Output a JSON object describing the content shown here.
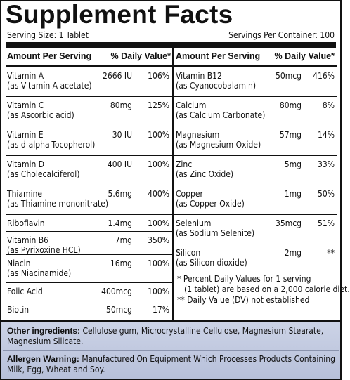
{
  "title": "Supplement Facts",
  "serving_size": "Serving Size: 1 Tablet",
  "servings_per_container": "Servings Per Container: 100",
  "headers": {
    "amount_per_serving": "Amount Per Serving",
    "daily_value": "% Daily Value*"
  },
  "left_rows": [
    {
      "name": "Vitamin A",
      "sub": "(as Vitamin A acetate)",
      "amount": "2666 IU",
      "dv": "106%"
    },
    {
      "name": "Vitamin C",
      "sub": "(as Ascorbic acid)",
      "amount": "80mg",
      "dv": "125%"
    },
    {
      "name": "Vitamin E",
      "sub": "(as d-alpha-Tocopherol)",
      "amount": "30 IU",
      "dv": "100%"
    },
    {
      "name": "Vitamin D",
      "sub": "(as Cholecalciferol)",
      "amount": "400 IU",
      "dv": "100%"
    },
    {
      "name": "Thiamine",
      "sub": "(as Thiamine mononitrate)",
      "amount": "5.6mg",
      "dv": "400%"
    },
    {
      "name": "Riboflavin",
      "sub": "",
      "amount": "1.4mg",
      "dv": "100%"
    },
    {
      "name": "Vitamin B6",
      "sub": "(as Pyrixoxine HCL)",
      "amount": "7mg",
      "dv": "350%"
    },
    {
      "name": "Niacin",
      "sub": "(as Niacinamide)",
      "amount": "16mg",
      "dv": "100%"
    },
    {
      "name": "Folic Acid",
      "sub": "",
      "amount": "400mcg",
      "dv": "100%"
    },
    {
      "name": "Biotin",
      "sub": "",
      "amount": "50mcg",
      "dv": "17%"
    }
  ],
  "right_rows": [
    {
      "name": "Vitamin B12",
      "sub": "(as Cyanocobalamin)",
      "amount": "50mcg",
      "dv": "416%"
    },
    {
      "name": "Calcium",
      "sub": "(as Calcium Carbonate)",
      "amount": "80mg",
      "dv": "8%"
    },
    {
      "name": "Magnesium",
      "sub": "(as Magnesium Oxide)",
      "amount": "57mg",
      "dv": "14%"
    },
    {
      "name": "Zinc",
      "sub": "(as Zinc Oxide)",
      "amount": "5mg",
      "dv": "33%"
    },
    {
      "name": "Copper",
      "sub": "(as Copper Oxide)",
      "amount": "1mg",
      "dv": "50%"
    },
    {
      "name": "Selenium",
      "sub": "(as Sodium Selenite)",
      "amount": "35mcg",
      "dv": "51%"
    },
    {
      "name": "Silicon",
      "sub": "(as Silicon dioxide)",
      "amount": "2mg",
      "dv": "**"
    }
  ],
  "notes": {
    "line1": "* Percent Daily Values for 1 serving",
    "line2": "(1 tablet) are based on a 2,000 calorie diet.",
    "line3": "** Daily Value (DV) not established"
  },
  "other_ingredients": {
    "label": "Other ingredients:",
    "text": "Cellulose gum, Microcrystalline Cellulose, Magnesium Stearate, Magnesium Silicate."
  },
  "allergen_warning": {
    "label": "Allergen Warning:",
    "text": "Manufactured On Equipment Which Processes Products Containing Milk, Egg, Wheat and Soy."
  }
}
